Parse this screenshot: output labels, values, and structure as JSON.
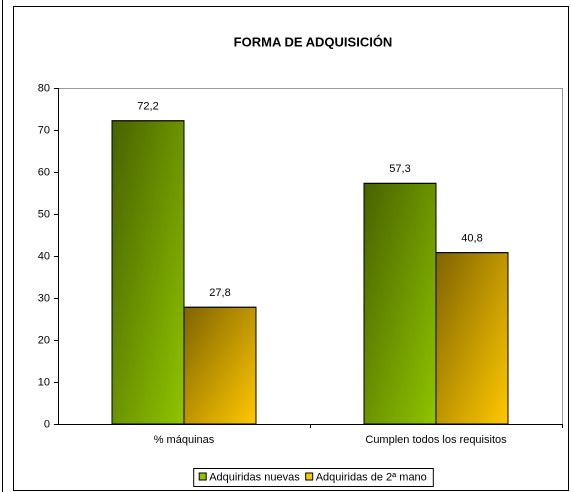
{
  "chart_data": {
    "type": "bar",
    "title": "FORMA DE ADQUISICIÓN",
    "categories": [
      "% máquinas",
      "Cumplen todos los requisitos"
    ],
    "series": [
      {
        "name": "Adquiridas nuevas",
        "color": "#8fc400",
        "values": [
          72.2,
          57.3
        ],
        "value_labels": [
          "72,2",
          "57,3"
        ]
      },
      {
        "name": "Adquiridas de 2ª mano",
        "color": "#ffc800",
        "values": [
          27.8,
          40.8
        ],
        "value_labels": [
          "27,8",
          "40,8"
        ]
      }
    ],
    "ylim": [
      0,
      80
    ],
    "yticks": [
      0,
      10,
      20,
      30,
      40,
      50,
      60,
      70,
      80
    ],
    "grid": false,
    "legend": "bottom"
  }
}
